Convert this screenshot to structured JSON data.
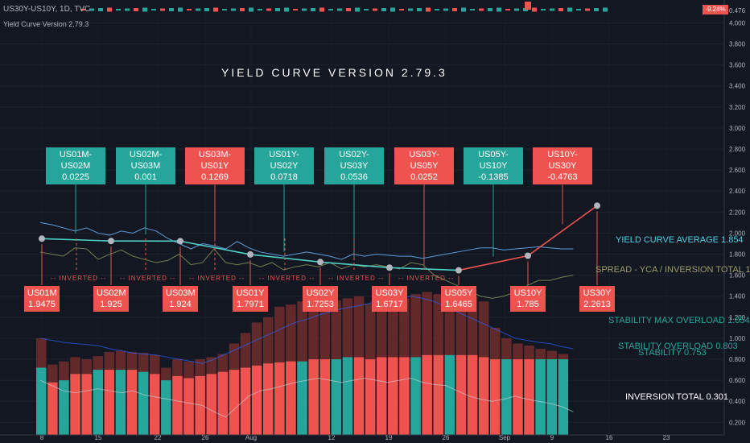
{
  "header": {
    "symbol_line": "US30Y-US10Y, 1D, TVC",
    "indicator_name": "Yield Curve Version 2.79.3",
    "last_change": "-9.24%",
    "last_value": "0.476"
  },
  "main_title": "YIELD CURVE VERSION 2.79.3",
  "side_labels": {
    "yield_curve_average": "YIELD CURVE AVERAGE 1.854",
    "spread": "SPREAD - YCA / INVERSION TOTAL 1",
    "stability_max_overload": "STABILITY MAX OVERLOAD 1.054",
    "stability_overload": "STABILITY OVERLOAD 0.803",
    "stability": "STABILITY 0.753",
    "inversion_total": "INVERSION TOTAL 0.301"
  },
  "colors": {
    "background": "#131722",
    "green": "#26a69a",
    "red": "#ef5350",
    "dark_red": "#7f2f2f",
    "yield_curve_line": "#4dd0c4",
    "curve_average": "#5b9bd5",
    "spread_line": "#8a9a5b"
  },
  "chart_data": {
    "type": "line",
    "title": "YIELD CURVE VERSION 2.79.3",
    "y_ticks": [
      "0.200",
      "0.400",
      "0.600",
      "0.800",
      "1.000",
      "1.200",
      "1.400",
      "1.600",
      "1.800",
      "2.000",
      "2.200",
      "2.400",
      "2.600",
      "2.800",
      "3.000",
      "3.200",
      "3.400",
      "3.600",
      "3.800",
      "4.000"
    ],
    "ylim": [
      0.08,
      4.08
    ],
    "x_ticks": [
      "8",
      "15",
      "22",
      "26",
      "Aug",
      "12",
      "19",
      "26",
      "Sep",
      "9",
      "16",
      "23"
    ],
    "yield_curve": {
      "labels": [
        "US01M",
        "US02M",
        "US03M",
        "US01Y",
        "US02Y",
        "US03Y",
        "US05Y",
        "US10Y",
        "US30Y"
      ],
      "values": [
        1.9475,
        1.925,
        1.924,
        1.7971,
        1.7253,
        1.6717,
        1.6465,
        1.785,
        2.2613
      ]
    },
    "spreads": [
      {
        "name": "US01M-US02M",
        "value": "0.0225",
        "color": "green"
      },
      {
        "name": "US02M-US03M",
        "value": "0.001",
        "color": "green"
      },
      {
        "name": "US03M-US01Y",
        "value": "0.1269",
        "color": "red"
      },
      {
        "name": "US01Y-US02Y",
        "value": "0.0718",
        "color": "green"
      },
      {
        "name": "US02Y-US03Y",
        "value": "0.0536",
        "color": "green"
      },
      {
        "name": "US03Y-US05Y",
        "value": "0.0252",
        "color": "red"
      },
      {
        "name": "US05Y-US10Y",
        "value": "-0.1385",
        "color": "green"
      },
      {
        "name": "US10Y-US30Y",
        "value": "-0.4763",
        "color": "red"
      }
    ],
    "inverted_label": "INVERTED",
    "bars": {
      "colors": [
        "green",
        "red",
        "green",
        "red",
        "red",
        "green",
        "red",
        "green",
        "red",
        "green",
        "red",
        "green",
        "red",
        "red",
        "red",
        "red",
        "red",
        "red",
        "red",
        "red",
        "red",
        "red",
        "red",
        "green",
        "red",
        "red",
        "green",
        "green",
        "red",
        "red",
        "red",
        "red",
        "red",
        "green",
        "red",
        "red",
        "green",
        "red",
        "red",
        "red",
        "red",
        "green",
        "red",
        "red",
        "green",
        "green",
        "green"
      ],
      "heights": [
        1.0,
        0.75,
        0.78,
        0.82,
        0.8,
        0.83,
        0.87,
        0.88,
        0.87,
        0.86,
        0.84,
        0.72,
        0.8,
        0.78,
        0.8,
        0.82,
        0.85,
        0.95,
        1.05,
        1.15,
        1.2,
        1.3,
        1.32,
        1.35,
        1.4,
        1.38,
        1.36,
        1.38,
        1.4,
        1.33,
        1.4,
        1.42,
        1.38,
        1.42,
        1.44,
        1.42,
        1.45,
        1.43,
        1.4,
        1.35,
        1.1,
        1.0,
        0.95,
        0.93,
        0.9,
        0.88,
        0.85
      ],
      "inner": [
        0.72,
        0.58,
        0.6,
        0.66,
        0.66,
        0.7,
        0.7,
        0.7,
        0.7,
        0.68,
        0.66,
        0.6,
        0.64,
        0.62,
        0.64,
        0.66,
        0.68,
        0.7,
        0.72,
        0.74,
        0.76,
        0.77,
        0.78,
        0.78,
        0.8,
        0.8,
        0.8,
        0.82,
        0.82,
        0.8,
        0.82,
        0.82,
        0.82,
        0.82,
        0.84,
        0.84,
        0.84,
        0.84,
        0.84,
        0.82,
        0.8,
        0.8,
        0.8,
        0.8,
        0.8,
        0.8,
        0.8
      ]
    }
  }
}
